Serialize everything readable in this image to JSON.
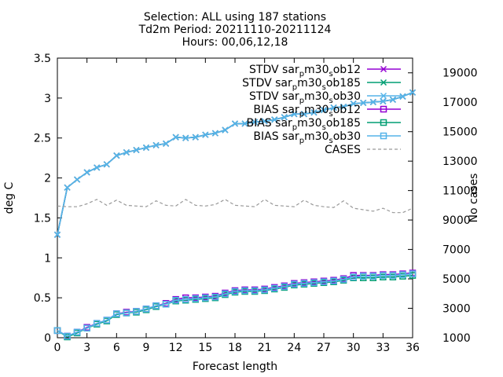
{
  "chart_data": {
    "type": "line",
    "title_lines": [
      "Selection: ALL using   187 stations",
      "Td2m  Period: 20211110-20211124",
      "Hours: 00,06,12,18"
    ],
    "xlabel": "Forecast length",
    "ylabel": "deg C",
    "y2label": "No cases",
    "xlim": [
      0,
      36
    ],
    "ylim": [
      0,
      3.5
    ],
    "y2lim": [
      1000,
      20000
    ],
    "xticks": [
      "0",
      "3",
      "6",
      "9",
      "12",
      "15",
      "18",
      "21",
      "24",
      "27",
      "30",
      "33",
      "36"
    ],
    "yticks": [
      "0",
      "0.5",
      "1",
      "1.5",
      "2",
      "2.5",
      "3",
      "3.5"
    ],
    "y2ticks": [
      "1000",
      "3000",
      "5000",
      "7000",
      "9000",
      "11000",
      "13000",
      "15000",
      "17000",
      "19000"
    ],
    "grid": false,
    "legend_position": "top-right",
    "x": [
      0,
      1,
      2,
      3,
      4,
      5,
      6,
      7,
      8,
      9,
      10,
      11,
      12,
      13,
      14,
      15,
      16,
      17,
      18,
      19,
      20,
      21,
      22,
      23,
      24,
      25,
      26,
      27,
      28,
      29,
      30,
      31,
      32,
      33,
      34,
      35,
      36
    ],
    "series": [
      {
        "name": "STDV sar_pm30_sob12",
        "legend": [
          "STDV sar",
          "p",
          "m30",
          "s",
          "ob12"
        ],
        "color": "#9400d3",
        "marker": "x",
        "dash": false,
        "values": [
          1.29,
          1.88,
          1.98,
          2.07,
          2.13,
          2.17,
          2.28,
          2.32,
          2.35,
          2.38,
          2.41,
          2.43,
          2.51,
          2.5,
          2.51,
          2.54,
          2.56,
          2.6,
          2.68,
          2.68,
          2.7,
          2.71,
          2.73,
          2.76,
          2.8,
          2.8,
          2.82,
          2.85,
          2.88,
          2.89,
          2.93,
          2.94,
          2.95,
          2.96,
          2.98,
          3.02,
          3.07
        ]
      },
      {
        "name": "STDV sar_pm30_sob185",
        "legend": [
          "STDV sar",
          "p",
          "m30",
          "s",
          "ob185"
        ],
        "color": "#009e73",
        "marker": "x",
        "dash": false,
        "values": [
          1.29,
          1.88,
          1.98,
          2.07,
          2.13,
          2.17,
          2.28,
          2.32,
          2.35,
          2.38,
          2.41,
          2.43,
          2.51,
          2.5,
          2.51,
          2.54,
          2.56,
          2.6,
          2.68,
          2.68,
          2.7,
          2.71,
          2.73,
          2.76,
          2.8,
          2.8,
          2.82,
          2.85,
          2.88,
          2.89,
          2.93,
          2.94,
          2.95,
          2.96,
          2.98,
          3.02,
          3.07
        ]
      },
      {
        "name": "STDV sar_pm30_sob30",
        "legend": [
          "STDV sar",
          "p",
          "m30",
          "s",
          "ob30"
        ],
        "color": "#56b4e9",
        "marker": "x",
        "dash": false,
        "values": [
          1.29,
          1.88,
          1.98,
          2.07,
          2.13,
          2.17,
          2.28,
          2.32,
          2.35,
          2.38,
          2.41,
          2.43,
          2.51,
          2.5,
          2.51,
          2.54,
          2.56,
          2.6,
          2.68,
          2.68,
          2.7,
          2.71,
          2.73,
          2.76,
          2.8,
          2.8,
          2.82,
          2.85,
          2.88,
          2.89,
          2.93,
          2.94,
          2.95,
          2.96,
          2.98,
          3.02,
          3.07
        ]
      },
      {
        "name": "BIAS sar_pm30_sob12",
        "legend": [
          "BIAS sar",
          "p",
          "m30",
          "s",
          "ob12"
        ],
        "color": "#9400d3",
        "marker": "square",
        "dash": false,
        "values": [
          0.09,
          0.02,
          0.07,
          0.13,
          0.18,
          0.22,
          0.3,
          0.32,
          0.33,
          0.36,
          0.4,
          0.43,
          0.48,
          0.5,
          0.5,
          0.51,
          0.52,
          0.56,
          0.59,
          0.6,
          0.6,
          0.61,
          0.63,
          0.65,
          0.68,
          0.69,
          0.7,
          0.71,
          0.72,
          0.74,
          0.78,
          0.78,
          0.78,
          0.79,
          0.79,
          0.8,
          0.81
        ]
      },
      {
        "name": "BIAS sar_pm30_sob185",
        "legend": [
          "BIAS sar",
          "p",
          "m30",
          "s",
          "ob185"
        ],
        "color": "#009e73",
        "marker": "square",
        "dash": false,
        "values": [
          0.09,
          0.01,
          0.06,
          0.12,
          0.17,
          0.21,
          0.29,
          0.31,
          0.32,
          0.35,
          0.39,
          0.42,
          0.46,
          0.47,
          0.48,
          0.49,
          0.5,
          0.54,
          0.57,
          0.58,
          0.58,
          0.59,
          0.61,
          0.63,
          0.66,
          0.67,
          0.68,
          0.69,
          0.7,
          0.72,
          0.75,
          0.75,
          0.75,
          0.76,
          0.76,
          0.77,
          0.78
        ]
      },
      {
        "name": "BIAS sar_pm30_sob30",
        "legend": [
          "BIAS sar",
          "p",
          "m30",
          "s",
          "ob30"
        ],
        "color": "#56b4e9",
        "marker": "square",
        "dash": false,
        "values": [
          0.09,
          0.02,
          0.07,
          0.12,
          0.18,
          0.22,
          0.3,
          0.31,
          0.33,
          0.36,
          0.4,
          0.42,
          0.47,
          0.48,
          0.49,
          0.5,
          0.51,
          0.55,
          0.58,
          0.59,
          0.59,
          0.6,
          0.62,
          0.64,
          0.67,
          0.68,
          0.69,
          0.7,
          0.71,
          0.73,
          0.76,
          0.77,
          0.77,
          0.78,
          0.78,
          0.79,
          0.8
        ]
      },
      {
        "name": "CASES",
        "legend": [
          "CASES"
        ],
        "color": "#999999",
        "marker": "none",
        "dash": true,
        "axis": "y2",
        "values": [
          9950,
          9900,
          9900,
          10100,
          10400,
          10000,
          10350,
          10000,
          9950,
          9900,
          10300,
          10000,
          9950,
          10400,
          10000,
          9950,
          10050,
          10400,
          10000,
          9950,
          9900,
          10400,
          10000,
          9950,
          9900,
          10350,
          10000,
          9900,
          9850,
          10300,
          9800,
          9700,
          9600,
          9800,
          9500,
          9500,
          9800
        ]
      }
    ]
  }
}
